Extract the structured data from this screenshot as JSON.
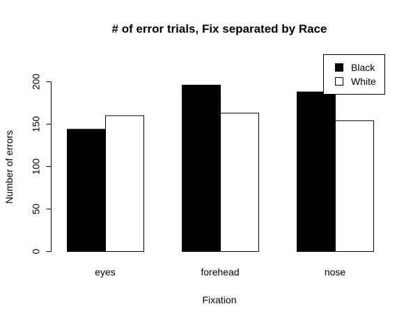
{
  "chart_data": {
    "type": "bar",
    "title": "# of error trials, Fix separated by Race",
    "xlabel": "Fixation",
    "ylabel": "Number of errors",
    "categories": [
      "eyes",
      "forehead",
      "nose"
    ],
    "series": [
      {
        "name": "Black",
        "values": [
          144,
          196,
          188
        ],
        "color": "#000000"
      },
      {
        "name": "White",
        "values": [
          160,
          163,
          154
        ],
        "color": "#ffffff"
      }
    ],
    "ylim": [
      0,
      200
    ],
    "yticks": [
      0,
      50,
      100,
      150,
      200
    ],
    "grid": false,
    "legend_position": "top-right"
  }
}
